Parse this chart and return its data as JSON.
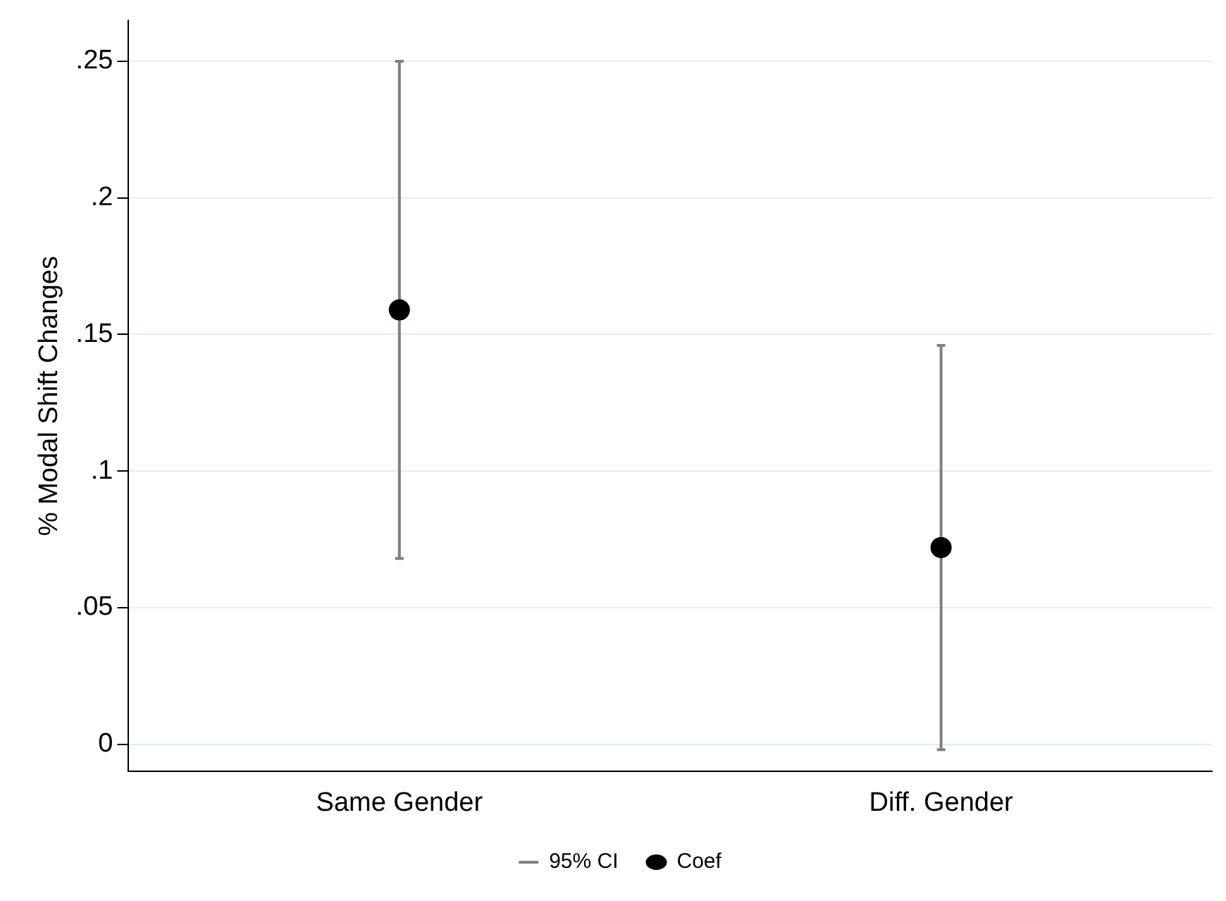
{
  "chart_data": {
    "type": "scatter",
    "ylabel": "% Modal Shift Changes",
    "categories": [
      "Same Gender",
      "Diff. Gender"
    ],
    "ylim": [
      -0.01,
      0.265
    ],
    "yticks": [
      0,
      {
        "value": 0.05,
        "label": ".05"
      },
      {
        "value": 0.1,
        "label": ".1"
      },
      {
        "value": 0.15,
        "label": ".15"
      },
      {
        "value": 0.2,
        "label": ".2"
      },
      {
        "value": 0.25,
        "label": ".25"
      }
    ],
    "grid": "y",
    "legend": "bottom",
    "annotations": [
      "95% CI"
    ],
    "series": [
      {
        "name": "Coef",
        "color": "#000000",
        "marker": "circle",
        "values": [
          0.159,
          0.072
        ],
        "errors": [
          [
            0.068,
            0.25
          ],
          [
            -0.002,
            0.146
          ]
        ]
      }
    ]
  }
}
